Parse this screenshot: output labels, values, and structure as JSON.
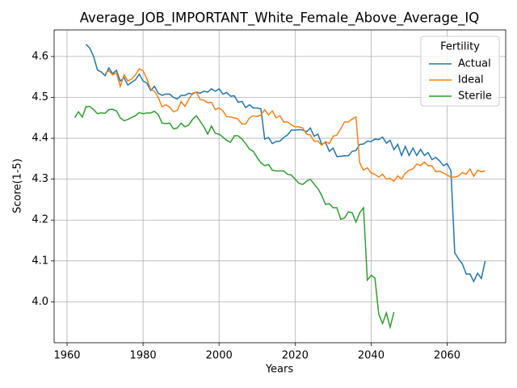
{
  "chart_data": {
    "type": "line",
    "title": "Average_JOB_IMPORTANT_White_Female_Above_Average_IQ",
    "x_label": "Years",
    "y_label": "Score(1-5)",
    "x": [
      1962,
      1963,
      1964,
      1965,
      1966,
      1967,
      1968,
      1969,
      1970,
      1971,
      1972,
      1973,
      1974,
      1975,
      1976,
      1977,
      1978,
      1979,
      1980,
      1981,
      1982,
      1983,
      1984,
      1985,
      1986,
      1987,
      1988,
      1989,
      1990,
      1991,
      1992,
      1993,
      1994,
      1995,
      1996,
      1997,
      1998,
      1999,
      2000,
      2001,
      2002,
      2003,
      2004,
      2005,
      2006,
      2007,
      2008,
      2009,
      2010,
      2011,
      2012,
      2013,
      2014,
      2015,
      2016,
      2017,
      2018,
      2019,
      2020,
      2021,
      2022,
      2023,
      2024,
      2025,
      2026,
      2027,
      2028,
      2029,
      2030,
      2031,
      2032,
      2033,
      2034,
      2035,
      2036,
      2037,
      2038,
      2039,
      2040,
      2041,
      2042,
      2043,
      2044,
      2045,
      2046,
      2047,
      2048,
      2049,
      2050,
      2051,
      2052,
      2053,
      2054,
      2055,
      2056,
      2057,
      2058,
      2059,
      2060,
      2061,
      2062,
      2063,
      2064,
      2065,
      2066,
      2067,
      2068,
      2069,
      2070
    ],
    "series": [
      {
        "name": "Actual",
        "color": "#1f77b4",
        "values": [
          null,
          null,
          null,
          4.63,
          4.62,
          4.6,
          4.567,
          4.562,
          4.553,
          4.572,
          4.558,
          4.566,
          4.54,
          4.548,
          4.53,
          4.537,
          4.543,
          4.557,
          4.54,
          4.535,
          4.517,
          4.527,
          4.51,
          4.505,
          4.508,
          4.508,
          4.5,
          4.496,
          4.505,
          4.505,
          4.51,
          4.508,
          4.513,
          4.51,
          4.515,
          4.513,
          4.521,
          4.515,
          4.521,
          4.508,
          4.512,
          4.503,
          4.504,
          4.488,
          4.49,
          4.475,
          4.482,
          4.474,
          4.474,
          4.472,
          4.398,
          4.402,
          4.387,
          4.392,
          4.393,
          4.402,
          4.408,
          4.42,
          4.42,
          4.421,
          4.42,
          4.416,
          4.425,
          4.405,
          4.41,
          4.385,
          4.39,
          4.368,
          4.376,
          4.355,
          4.356,
          4.357,
          4.357,
          4.368,
          4.37,
          4.385,
          4.386,
          4.393,
          4.392,
          4.398,
          4.397,
          4.403,
          4.388,
          4.395,
          4.372,
          4.385,
          4.358,
          4.38,
          4.358,
          4.376,
          4.358,
          4.373,
          4.358,
          4.365,
          4.348,
          4.353,
          4.345,
          4.333,
          4.338,
          4.32,
          4.12,
          4.105,
          4.093,
          4.068,
          4.068,
          4.05,
          4.07,
          4.057,
          4.1
        ]
      },
      {
        "name": "Ideal",
        "color": "#ff7f0e",
        "values": [
          null,
          null,
          null,
          null,
          null,
          null,
          null,
          null,
          4.558,
          4.565,
          4.555,
          4.56,
          4.527,
          4.555,
          4.54,
          4.545,
          4.555,
          4.57,
          4.565,
          4.545,
          4.52,
          4.515,
          4.5,
          4.477,
          4.482,
          4.476,
          4.465,
          4.468,
          4.49,
          4.478,
          4.495,
          4.51,
          4.513,
          4.495,
          4.493,
          4.487,
          4.488,
          4.47,
          4.474,
          4.467,
          4.453,
          4.452,
          4.45,
          4.447,
          4.435,
          4.435,
          4.45,
          4.455,
          4.453,
          4.457,
          4.47,
          4.457,
          4.467,
          4.45,
          4.455,
          4.44,
          4.44,
          4.433,
          4.428,
          4.428,
          4.425,
          4.41,
          4.408,
          4.393,
          4.393,
          4.383,
          4.392,
          4.387,
          4.405,
          4.408,
          4.423,
          4.44,
          4.44,
          4.447,
          4.452,
          4.34,
          4.322,
          4.328,
          4.315,
          4.312,
          4.305,
          4.312,
          4.3,
          4.302,
          4.295,
          4.308,
          4.3,
          4.315,
          4.322,
          4.325,
          4.337,
          4.333,
          4.342,
          4.333,
          4.333,
          4.318,
          4.32,
          4.315,
          4.31,
          4.305,
          4.305,
          4.308,
          4.316,
          4.312,
          4.325,
          4.307,
          4.322,
          4.318,
          4.32
        ]
      },
      {
        "name": "Sterile",
        "color": "#2ca02c",
        "values": [
          4.45,
          4.465,
          4.452,
          4.477,
          4.478,
          4.47,
          4.46,
          4.462,
          4.461,
          4.47,
          4.471,
          4.467,
          4.45,
          4.443,
          4.446,
          4.451,
          4.455,
          4.463,
          4.46,
          4.462,
          4.462,
          4.466,
          4.458,
          4.437,
          4.436,
          4.437,
          4.423,
          4.425,
          4.437,
          4.428,
          4.432,
          4.446,
          4.455,
          4.442,
          4.428,
          4.41,
          4.43,
          4.412,
          4.41,
          4.403,
          4.395,
          4.39,
          4.406,
          4.406,
          4.398,
          4.387,
          4.373,
          4.368,
          4.353,
          4.34,
          4.333,
          4.336,
          4.322,
          4.32,
          4.32,
          4.32,
          4.312,
          4.31,
          4.3,
          4.29,
          4.287,
          4.295,
          4.3,
          4.288,
          4.277,
          4.26,
          4.238,
          4.24,
          4.23,
          4.23,
          4.202,
          4.205,
          4.22,
          4.218,
          4.195,
          4.218,
          4.23,
          4.053,
          4.065,
          4.058,
          3.97,
          3.947,
          3.973,
          3.938,
          3.975,
          null,
          null,
          null,
          null,
          null,
          null,
          null,
          null,
          null,
          null,
          null,
          null,
          null,
          null,
          null,
          null,
          null,
          null,
          null,
          null,
          null,
          null,
          null,
          null
        ]
      }
    ],
    "xlim": [
      1956.6,
      2075.4
    ],
    "ylim": [
      3.9,
      4.665
    ],
    "xticks": [
      1960,
      1980,
      2000,
      2020,
      2040,
      2060
    ],
    "yticks": [
      {
        "value": 4.0,
        "label": "4.0"
      },
      4.1,
      4.2,
      4.3,
      4.4,
      4.5,
      4.6
    ],
    "grid": true,
    "legend_title": "Fertility",
    "legend_position": "upper right"
  }
}
